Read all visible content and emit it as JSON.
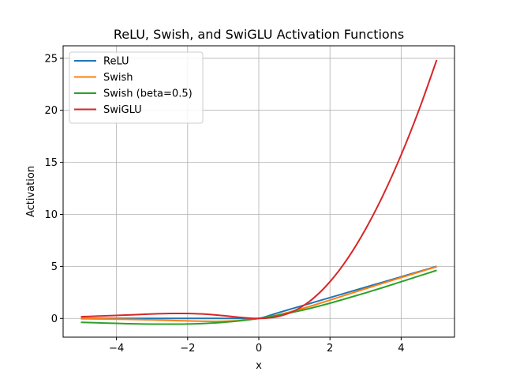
{
  "chart_data": {
    "type": "line",
    "title": "ReLU, Swish, and SwiGLU Activation Functions",
    "xlabel": "x",
    "ylabel": "Activation",
    "xlim": [
      -5.5,
      5.5
    ],
    "ylim": [
      -1.8,
      26.2
    ],
    "grid": true,
    "legend_position": "top-left",
    "xticks": [
      -4,
      -2,
      0,
      2,
      4
    ],
    "yticks": [
      0,
      5,
      10,
      15,
      20,
      25
    ],
    "x": [
      -5,
      -4.5,
      -4,
      -3.5,
      -3,
      -2.5,
      -2,
      -1.5,
      -1,
      -0.5,
      0,
      0.5,
      1,
      1.5,
      2,
      2.5,
      3,
      3.5,
      4,
      4.5,
      5
    ],
    "series": [
      {
        "name": "ReLU",
        "color": "#1f77b4",
        "values": [
          0,
          0,
          0,
          0,
          0,
          0,
          0,
          0,
          0,
          0,
          0,
          0.5,
          1,
          1.5,
          2,
          2.5,
          3,
          3.5,
          4,
          4.5,
          5
        ]
      },
      {
        "name": "Swish",
        "color": "#ff7f0e",
        "values": [
          -0.033,
          -0.05,
          -0.072,
          -0.102,
          -0.142,
          -0.189,
          -0.238,
          -0.274,
          -0.269,
          -0.189,
          0,
          0.311,
          0.731,
          1.226,
          1.762,
          2.311,
          2.858,
          3.398,
          3.928,
          4.45,
          4.967
        ]
      },
      {
        "name": "Swish (beta=0.5)",
        "color": "#2ca02c",
        "values": [
          -0.378,
          -0.428,
          -0.477,
          -0.52,
          -0.546,
          -0.544,
          -0.538,
          -0.481,
          -0.378,
          -0.219,
          0,
          0.281,
          0.622,
          1.019,
          1.462,
          1.956,
          2.454,
          2.98,
          3.523,
          4.074,
          4.622
        ]
      },
      {
        "name": "SwiGLU",
        "color": "#d62728",
        "values": [
          0.167,
          0.227,
          0.29,
          0.356,
          0.426,
          0.472,
          0.476,
          0.41,
          0.269,
          0.094,
          0,
          0.156,
          0.731,
          1.839,
          3.524,
          5.775,
          8.575,
          11.893,
          15.71,
          20.026,
          24.833
        ]
      }
    ]
  }
}
